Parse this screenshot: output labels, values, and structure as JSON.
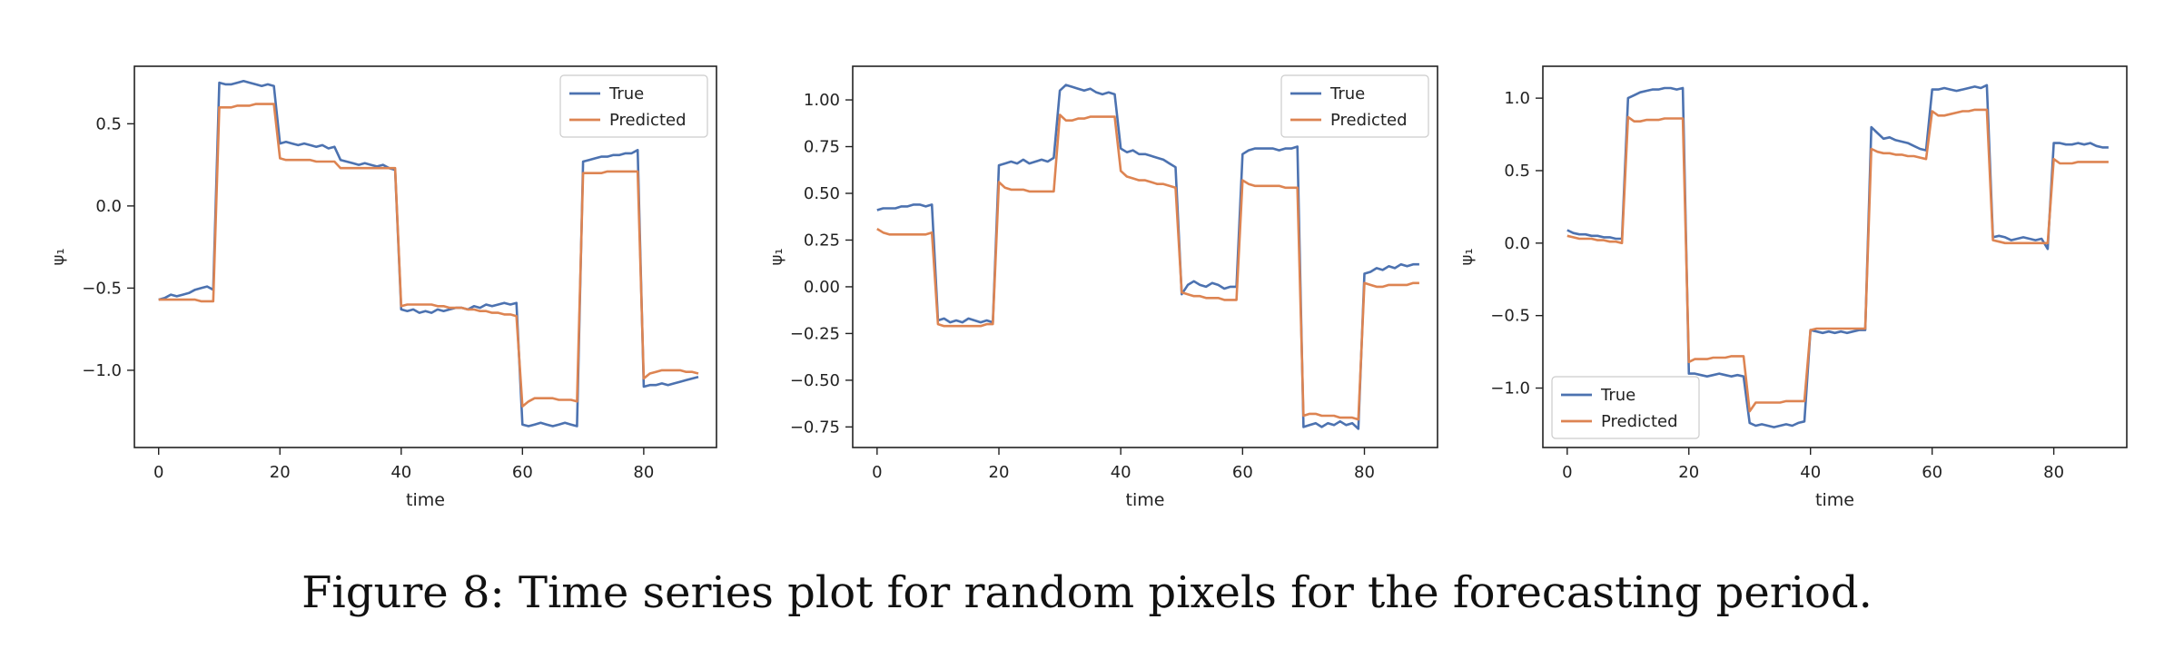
{
  "caption": "Figure 8: Time series plot for random pixels for the forecasting period.",
  "colors": {
    "true": "#4c72b0",
    "predicted": "#dd8452",
    "axes": "#222222"
  },
  "chart_data": [
    {
      "type": "line",
      "xlabel": "time",
      "ylabel": "ψ₁",
      "xlim": [
        -4,
        92
      ],
      "ylim": [
        -1.47,
        0.85
      ],
      "xticks": [
        0,
        20,
        40,
        60,
        80
      ],
      "xtick_labels": [
        "0",
        "20",
        "40",
        "60",
        "80"
      ],
      "yticks": [
        0.5,
        0.0,
        -0.5,
        -1.0
      ],
      "ytick_labels": [
        "0.5",
        "0.0",
        "−0.5",
        "−1.0"
      ],
      "legend_position": "upper right",
      "series": [
        {
          "name": "True",
          "color": "#4c72b0",
          "y": [
            -0.57,
            -0.56,
            -0.54,
            -0.55,
            -0.54,
            -0.53,
            -0.51,
            -0.5,
            -0.49,
            -0.51,
            0.75,
            0.74,
            0.74,
            0.75,
            0.76,
            0.75,
            0.74,
            0.73,
            0.74,
            0.73,
            0.38,
            0.39,
            0.38,
            0.37,
            0.38,
            0.37,
            0.36,
            0.37,
            0.35,
            0.36,
            0.28,
            0.27,
            0.26,
            0.25,
            0.26,
            0.25,
            0.24,
            0.25,
            0.23,
            0.22,
            -0.63,
            -0.64,
            -0.63,
            -0.65,
            -0.64,
            -0.65,
            -0.63,
            -0.64,
            -0.63,
            -0.62,
            -0.62,
            -0.63,
            -0.61,
            -0.62,
            -0.6,
            -0.61,
            -0.6,
            -0.59,
            -0.6,
            -0.59,
            -1.33,
            -1.34,
            -1.33,
            -1.32,
            -1.33,
            -1.34,
            -1.33,
            -1.32,
            -1.33,
            -1.34,
            0.27,
            0.28,
            0.29,
            0.3,
            0.3,
            0.31,
            0.31,
            0.32,
            0.32,
            0.34,
            -1.1,
            -1.09,
            -1.09,
            -1.08,
            -1.09,
            -1.08,
            -1.07,
            -1.06,
            -1.05,
            -1.04
          ]
        },
        {
          "name": "Predicted",
          "color": "#dd8452",
          "y": [
            -0.57,
            -0.57,
            -0.57,
            -0.57,
            -0.57,
            -0.57,
            -0.57,
            -0.58,
            -0.58,
            -0.58,
            0.6,
            0.6,
            0.6,
            0.61,
            0.61,
            0.61,
            0.62,
            0.62,
            0.62,
            0.62,
            0.29,
            0.28,
            0.28,
            0.28,
            0.28,
            0.28,
            0.27,
            0.27,
            0.27,
            0.27,
            0.23,
            0.23,
            0.23,
            0.23,
            0.23,
            0.23,
            0.23,
            0.23,
            0.23,
            0.23,
            -0.61,
            -0.6,
            -0.6,
            -0.6,
            -0.6,
            -0.6,
            -0.61,
            -0.61,
            -0.62,
            -0.62,
            -0.62,
            -0.63,
            -0.63,
            -0.64,
            -0.64,
            -0.65,
            -0.65,
            -0.66,
            -0.66,
            -0.67,
            -1.22,
            -1.19,
            -1.17,
            -1.17,
            -1.17,
            -1.17,
            -1.18,
            -1.18,
            -1.18,
            -1.19,
            0.2,
            0.2,
            0.2,
            0.2,
            0.21,
            0.21,
            0.21,
            0.21,
            0.21,
            0.21,
            -1.05,
            -1.02,
            -1.01,
            -1.0,
            -1.0,
            -1.0,
            -1.0,
            -1.01,
            -1.01,
            -1.02
          ]
        }
      ]
    },
    {
      "type": "line",
      "xlabel": "time",
      "ylabel": "ψ₁",
      "xlim": [
        -4,
        92
      ],
      "ylim": [
        -0.86,
        1.18
      ],
      "xticks": [
        0,
        20,
        40,
        60,
        80
      ],
      "xtick_labels": [
        "0",
        "20",
        "40",
        "60",
        "80"
      ],
      "yticks": [
        1.0,
        0.75,
        0.5,
        0.25,
        0.0,
        -0.25,
        -0.5,
        -0.75
      ],
      "ytick_labels": [
        "1.00",
        "0.75",
        "0.50",
        "0.25",
        "0.00",
        "−0.25",
        "−0.50",
        "−0.75"
      ],
      "legend_position": "upper right",
      "series": [
        {
          "name": "True",
          "color": "#4c72b0",
          "y": [
            0.41,
            0.42,
            0.42,
            0.42,
            0.43,
            0.43,
            0.44,
            0.44,
            0.43,
            0.44,
            -0.18,
            -0.17,
            -0.19,
            -0.18,
            -0.19,
            -0.17,
            -0.18,
            -0.19,
            -0.18,
            -0.19,
            0.65,
            0.66,
            0.67,
            0.66,
            0.68,
            0.66,
            0.67,
            0.68,
            0.67,
            0.69,
            1.05,
            1.08,
            1.07,
            1.06,
            1.05,
            1.06,
            1.04,
            1.03,
            1.04,
            1.03,
            0.74,
            0.72,
            0.73,
            0.71,
            0.71,
            0.7,
            0.69,
            0.68,
            0.66,
            0.64,
            -0.04,
            0.01,
            0.03,
            0.01,
            0.0,
            0.02,
            0.01,
            -0.01,
            0.0,
            0.0,
            0.71,
            0.73,
            0.74,
            0.74,
            0.74,
            0.74,
            0.73,
            0.74,
            0.74,
            0.75,
            -0.75,
            -0.74,
            -0.73,
            -0.75,
            -0.73,
            -0.74,
            -0.72,
            -0.74,
            -0.73,
            -0.76,
            0.07,
            0.08,
            0.1,
            0.09,
            0.11,
            0.1,
            0.12,
            0.11,
            0.12,
            0.12
          ]
        },
        {
          "name": "Predicted",
          "color": "#dd8452",
          "y": [
            0.31,
            0.29,
            0.28,
            0.28,
            0.28,
            0.28,
            0.28,
            0.28,
            0.28,
            0.29,
            -0.2,
            -0.21,
            -0.21,
            -0.21,
            -0.21,
            -0.21,
            -0.21,
            -0.21,
            -0.2,
            -0.2,
            0.56,
            0.53,
            0.52,
            0.52,
            0.52,
            0.51,
            0.51,
            0.51,
            0.51,
            0.51,
            0.92,
            0.89,
            0.89,
            0.9,
            0.9,
            0.91,
            0.91,
            0.91,
            0.91,
            0.91,
            0.62,
            0.59,
            0.58,
            0.57,
            0.57,
            0.56,
            0.55,
            0.55,
            0.54,
            0.53,
            -0.03,
            -0.04,
            -0.05,
            -0.05,
            -0.06,
            -0.06,
            -0.06,
            -0.07,
            -0.07,
            -0.07,
            0.57,
            0.55,
            0.54,
            0.54,
            0.54,
            0.54,
            0.54,
            0.53,
            0.53,
            0.53,
            -0.69,
            -0.68,
            -0.68,
            -0.69,
            -0.69,
            -0.69,
            -0.7,
            -0.7,
            -0.7,
            -0.71,
            0.02,
            0.01,
            0.0,
            0.0,
            0.01,
            0.01,
            0.01,
            0.01,
            0.02,
            0.02
          ]
        }
      ]
    },
    {
      "type": "line",
      "xlabel": "time",
      "ylabel": "ψ₁",
      "xlim": [
        -4,
        92
      ],
      "ylim": [
        -1.41,
        1.22
      ],
      "xticks": [
        0,
        20,
        40,
        60,
        80
      ],
      "xtick_labels": [
        "0",
        "20",
        "40",
        "60",
        "80"
      ],
      "yticks": [
        1.0,
        0.5,
        0.0,
        -0.5,
        -1.0
      ],
      "ytick_labels": [
        "1.0",
        "0.5",
        "0.0",
        "−0.5",
        "−1.0"
      ],
      "legend_position": "lower left",
      "series": [
        {
          "name": "True",
          "color": "#4c72b0",
          "y": [
            0.09,
            0.07,
            0.06,
            0.06,
            0.05,
            0.05,
            0.04,
            0.04,
            0.03,
            0.03,
            1.0,
            1.02,
            1.04,
            1.05,
            1.06,
            1.06,
            1.07,
            1.07,
            1.06,
            1.07,
            -0.9,
            -0.9,
            -0.91,
            -0.92,
            -0.91,
            -0.9,
            -0.91,
            -0.92,
            -0.91,
            -0.92,
            -1.24,
            -1.26,
            -1.25,
            -1.26,
            -1.27,
            -1.26,
            -1.25,
            -1.26,
            -1.24,
            -1.23,
            -0.6,
            -0.61,
            -0.62,
            -0.61,
            -0.62,
            -0.61,
            -0.62,
            -0.61,
            -0.6,
            -0.6,
            0.8,
            0.76,
            0.72,
            0.73,
            0.71,
            0.7,
            0.69,
            0.67,
            0.65,
            0.64,
            1.06,
            1.06,
            1.07,
            1.06,
            1.05,
            1.06,
            1.07,
            1.08,
            1.07,
            1.09,
            0.04,
            0.05,
            0.04,
            0.02,
            0.03,
            0.04,
            0.03,
            0.02,
            0.03,
            -0.04,
            0.69,
            0.69,
            0.68,
            0.68,
            0.69,
            0.68,
            0.69,
            0.67,
            0.66,
            0.66
          ]
        },
        {
          "name": "Predicted",
          "color": "#dd8452",
          "y": [
            0.05,
            0.04,
            0.03,
            0.03,
            0.03,
            0.02,
            0.02,
            0.01,
            0.01,
            0.0,
            0.87,
            0.84,
            0.84,
            0.85,
            0.85,
            0.85,
            0.86,
            0.86,
            0.86,
            0.86,
            -0.82,
            -0.8,
            -0.8,
            -0.8,
            -0.79,
            -0.79,
            -0.79,
            -0.78,
            -0.78,
            -0.78,
            -1.16,
            -1.1,
            -1.1,
            -1.1,
            -1.1,
            -1.1,
            -1.09,
            -1.09,
            -1.09,
            -1.09,
            -0.6,
            -0.59,
            -0.59,
            -0.59,
            -0.59,
            -0.59,
            -0.59,
            -0.59,
            -0.59,
            -0.59,
            0.65,
            0.63,
            0.62,
            0.62,
            0.61,
            0.61,
            0.6,
            0.6,
            0.59,
            0.58,
            0.91,
            0.88,
            0.88,
            0.89,
            0.9,
            0.91,
            0.91,
            0.92,
            0.92,
            0.92,
            0.02,
            0.01,
            0.0,
            0.0,
            0.0,
            0.0,
            0.0,
            0.0,
            0.0,
            0.0,
            0.58,
            0.55,
            0.55,
            0.55,
            0.56,
            0.56,
            0.56,
            0.56,
            0.56,
            0.56
          ]
        }
      ]
    }
  ]
}
